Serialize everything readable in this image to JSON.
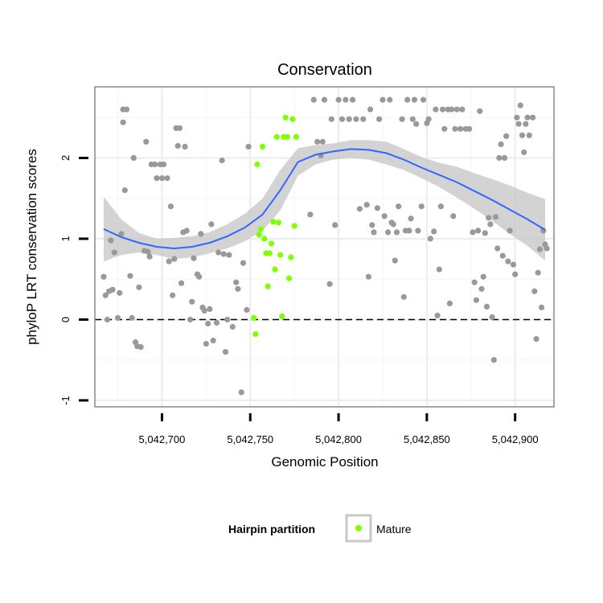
{
  "chart_data": {
    "type": "scatter",
    "title": "Conservation",
    "xlabel": "Genomic Position",
    "ylabel": "phyloP LRT conservation scores",
    "xlim": [
      5042662,
      5042922
    ],
    "ylim": [
      -1.08,
      2.88
    ],
    "x_ticks": [
      5042700,
      5042750,
      5042800,
      5042850,
      5042900
    ],
    "x_tick_labels": [
      "5,042,700",
      "5,042,750",
      "5,042,800",
      "5,042,850",
      "5,042,900"
    ],
    "y_ticks": [
      -1,
      0,
      1,
      2
    ],
    "y_tick_labels": [
      "-1",
      "0",
      "1",
      "2"
    ],
    "reference_line_y": 0,
    "grid": true,
    "legend": {
      "title": "Hairpin partition",
      "position": "bottom",
      "entries": [
        {
          "label": "Mature",
          "color": "#7fff00"
        }
      ]
    },
    "colors": {
      "other": "#999999",
      "mature": "#7fff00",
      "smooth_line": "#3366ff",
      "ribbon": "#c8c8c8",
      "panel_border": "#888888"
    },
    "series": [
      {
        "name": "",
        "color": "#999999",
        "points": [
          [
            5042667,
            0.53
          ],
          [
            5042668,
            0.3
          ],
          [
            5042669,
            0.0
          ],
          [
            5042670,
            0.35
          ],
          [
            5042671,
            0.98
          ],
          [
            5042672,
            0.37
          ],
          [
            5042673,
            0.83
          ],
          [
            5042675,
            0.02
          ],
          [
            5042676,
            0.33
          ],
          [
            5042677,
            1.06
          ],
          [
            5042678,
            2.6
          ],
          [
            5042679,
            1.6
          ],
          [
            5042680,
            2.6
          ],
          [
            5042682,
            0.54
          ],
          [
            5042683,
            0.02
          ],
          [
            5042684,
            2.0
          ],
          [
            5042685,
            -0.28
          ],
          [
            5042686,
            -0.33
          ],
          [
            5042687,
            0.4
          ],
          [
            5042688,
            -0.34
          ],
          [
            5042678,
            2.44
          ],
          [
            5042690,
            0.85
          ],
          [
            5042691,
            2.2
          ],
          [
            5042692,
            0.84
          ],
          [
            5042693,
            0.78
          ],
          [
            5042694,
            1.92
          ],
          [
            5042696,
            1.92
          ],
          [
            5042697,
            1.75
          ],
          [
            5042699,
            1.92
          ],
          [
            5042700,
            1.75
          ],
          [
            5042701,
            1.92
          ],
          [
            5042703,
            1.75
          ],
          [
            5042704,
            0.72
          ],
          [
            5042705,
            1.4
          ],
          [
            5042706,
            0.3
          ],
          [
            5042707,
            0.75
          ],
          [
            5042708,
            2.37
          ],
          [
            5042709,
            2.15
          ],
          [
            5042710,
            2.37
          ],
          [
            5042711,
            0.45
          ],
          [
            5042712,
            1.08
          ],
          [
            5042713,
            2.14
          ],
          [
            5042714,
            1.1
          ],
          [
            5042716,
            0.0
          ],
          [
            5042717,
            0.22
          ],
          [
            5042718,
            0.76
          ],
          [
            5042720,
            0.56
          ],
          [
            5042721,
            0.53
          ],
          [
            5042722,
            1.06
          ],
          [
            5042723,
            0.15
          ],
          [
            5042724,
            0.11
          ],
          [
            5042725,
            -0.3
          ],
          [
            5042726,
            -0.05
          ],
          [
            5042727,
            0.13
          ],
          [
            5042728,
            1.18
          ],
          [
            5042729,
            -0.26
          ],
          [
            5042731,
            -0.04
          ],
          [
            5042732,
            0.83
          ],
          [
            5042734,
            1.97
          ],
          [
            5042735,
            0.81
          ],
          [
            5042736,
            -0.4
          ],
          [
            5042737,
            0.0
          ],
          [
            5042738,
            0.8
          ],
          [
            5042740,
            -0.09
          ],
          [
            5042742,
            0.46
          ],
          [
            5042743,
            0.38
          ],
          [
            5042745,
            -0.9
          ],
          [
            5042746,
            0.7
          ],
          [
            5042748,
            0.12
          ],
          [
            5042749,
            2.14
          ],
          [
            5042784,
            1.3
          ],
          [
            5042786,
            2.72
          ],
          [
            5042788,
            2.2
          ],
          [
            5042790,
            2.03
          ],
          [
            5042791,
            2.2
          ],
          [
            5042792,
            2.72
          ],
          [
            5042795,
            0.44
          ],
          [
            5042796,
            2.48
          ],
          [
            5042798,
            1.17
          ],
          [
            5042800,
            2.72
          ],
          [
            5042802,
            2.48
          ],
          [
            5042804,
            2.72
          ],
          [
            5042806,
            2.48
          ],
          [
            5042808,
            2.72
          ],
          [
            5042810,
            2.48
          ],
          [
            5042812,
            1.37
          ],
          [
            5042814,
            2.48
          ],
          [
            5042816,
            1.42
          ],
          [
            5042817,
            0.53
          ],
          [
            5042818,
            2.6
          ],
          [
            5042819,
            1.17
          ],
          [
            5042820,
            1.08
          ],
          [
            5042822,
            1.38
          ],
          [
            5042823,
            2.48
          ],
          [
            5042825,
            2.72
          ],
          [
            5042826,
            1.28
          ],
          [
            5042828,
            1.08
          ],
          [
            5042829,
            2.72
          ],
          [
            5042830,
            1.2
          ],
          [
            5042831,
            1.18
          ],
          [
            5042832,
            0.73
          ],
          [
            5042833,
            1.08
          ],
          [
            5042834,
            1.4
          ],
          [
            5042836,
            2.48
          ],
          [
            5042837,
            0.28
          ],
          [
            5042838,
            1.1
          ],
          [
            5042839,
            2.72
          ],
          [
            5042840,
            1.1
          ],
          [
            5042841,
            1.25
          ],
          [
            5042842,
            2.48
          ],
          [
            5042843,
            2.72
          ],
          [
            5042844,
            2.42
          ],
          [
            5042845,
            1.1
          ],
          [
            5042847,
            1.4
          ],
          [
            5042848,
            2.72
          ],
          [
            5042850,
            2.43
          ],
          [
            5042851,
            2.48
          ],
          [
            5042852,
            1.0
          ],
          [
            5042854,
            1.09
          ],
          [
            5042855,
            2.6
          ],
          [
            5042856,
            0.05
          ],
          [
            5042857,
            0.62
          ],
          [
            5042858,
            1.4
          ],
          [
            5042859,
            2.6
          ],
          [
            5042860,
            2.36
          ],
          [
            5042862,
            2.6
          ],
          [
            5042863,
            0.2
          ],
          [
            5042864,
            2.6
          ],
          [
            5042865,
            1.28
          ],
          [
            5042866,
            2.36
          ],
          [
            5042867,
            2.6
          ],
          [
            5042869,
            2.36
          ],
          [
            5042870,
            2.6
          ],
          [
            5042872,
            2.36
          ],
          [
            5042874,
            2.36
          ],
          [
            5042876,
            1.08
          ],
          [
            5042877,
            0.46
          ],
          [
            5042878,
            0.24
          ],
          [
            5042879,
            1.1
          ],
          [
            5042880,
            2.58
          ],
          [
            5042881,
            0.38
          ],
          [
            5042882,
            0.53
          ],
          [
            5042883,
            1.07
          ],
          [
            5042884,
            0.16
          ],
          [
            5042885,
            1.26
          ],
          [
            5042886,
            1.18
          ],
          [
            5042887,
            0.03
          ],
          [
            5042888,
            -0.5
          ],
          [
            5042889,
            1.27
          ],
          [
            5042890,
            0.88
          ],
          [
            5042891,
            2.0
          ],
          [
            5042892,
            2.17
          ],
          [
            5042893,
            0.79
          ],
          [
            5042894,
            2.0
          ],
          [
            5042895,
            2.27
          ],
          [
            5042896,
            0.72
          ],
          [
            5042897,
            1.1
          ],
          [
            5042899,
            0.68
          ],
          [
            5042900,
            0.56
          ],
          [
            5042901,
            2.5
          ],
          [
            5042902,
            2.42
          ],
          [
            5042903,
            2.65
          ],
          [
            5042904,
            2.28
          ],
          [
            5042905,
            2.07
          ],
          [
            5042906,
            2.42
          ],
          [
            5042907,
            2.5
          ],
          [
            5042908,
            2.28
          ],
          [
            5042910,
            2.5
          ],
          [
            5042911,
            0.35
          ],
          [
            5042912,
            -0.24
          ],
          [
            5042913,
            0.58
          ],
          [
            5042914,
            0.87
          ],
          [
            5042915,
            0.15
          ],
          [
            5042916,
            1.1
          ],
          [
            5042917,
            0.93
          ],
          [
            5042918,
            0.88
          ]
        ]
      },
      {
        "name": "Mature",
        "color": "#7fff00",
        "points": [
          [
            5042752,
            0.02
          ],
          [
            5042753,
            -0.18
          ],
          [
            5042754,
            1.92
          ],
          [
            5042755,
            1.05
          ],
          [
            5042756,
            1.12
          ],
          [
            5042757,
            2.14
          ],
          [
            5042758,
            1.0
          ],
          [
            5042759,
            0.82
          ],
          [
            5042760,
            0.41
          ],
          [
            5042761,
            0.82
          ],
          [
            5042762,
            0.94
          ],
          [
            5042763,
            1.21
          ],
          [
            5042764,
            0.62
          ],
          [
            5042765,
            2.26
          ],
          [
            5042766,
            1.2
          ],
          [
            5042767,
            0.8
          ],
          [
            5042768,
            0.04
          ],
          [
            5042769,
            2.26
          ],
          [
            5042770,
            2.5
          ],
          [
            5042771,
            2.26
          ],
          [
            5042772,
            0.51
          ],
          [
            5042773,
            0.77
          ],
          [
            5042774,
            2.48
          ],
          [
            5042775,
            1.16
          ],
          [
            5042776,
            2.26
          ]
        ]
      }
    ],
    "smooth": {
      "x": [
        5042667,
        5042677,
        5042687,
        5042697,
        5042707,
        5042717,
        5042727,
        5042737,
        5042747,
        5042757,
        5042767,
        5042777,
        5042787,
        5042797,
        5042807,
        5042817,
        5042827,
        5042837,
        5042847,
        5042857,
        5042867,
        5042877,
        5042887,
        5042897,
        5042907,
        5042917
      ],
      "y": [
        1.12,
        1.02,
        0.95,
        0.9,
        0.88,
        0.9,
        0.95,
        1.03,
        1.14,
        1.3,
        1.6,
        1.95,
        2.04,
        2.08,
        2.11,
        2.1,
        2.06,
        1.98,
        1.88,
        1.79,
        1.7,
        1.59,
        1.48,
        1.36,
        1.24,
        1.11
      ],
      "lower": [
        0.72,
        0.8,
        0.83,
        0.8,
        0.75,
        0.77,
        0.82,
        0.88,
        0.97,
        1.1,
        1.35,
        1.78,
        1.92,
        1.98,
        2.0,
        1.98,
        1.92,
        1.85,
        1.75,
        1.64,
        1.51,
        1.37,
        1.22,
        1.06,
        0.91,
        0.73
      ],
      "upper": [
        1.52,
        1.24,
        1.07,
        1.0,
        1.01,
        1.03,
        1.08,
        1.18,
        1.31,
        1.5,
        1.85,
        2.12,
        2.16,
        2.18,
        2.22,
        2.22,
        2.2,
        2.11,
        2.01,
        1.94,
        1.89,
        1.81,
        1.74,
        1.66,
        1.57,
        1.49
      ]
    }
  }
}
